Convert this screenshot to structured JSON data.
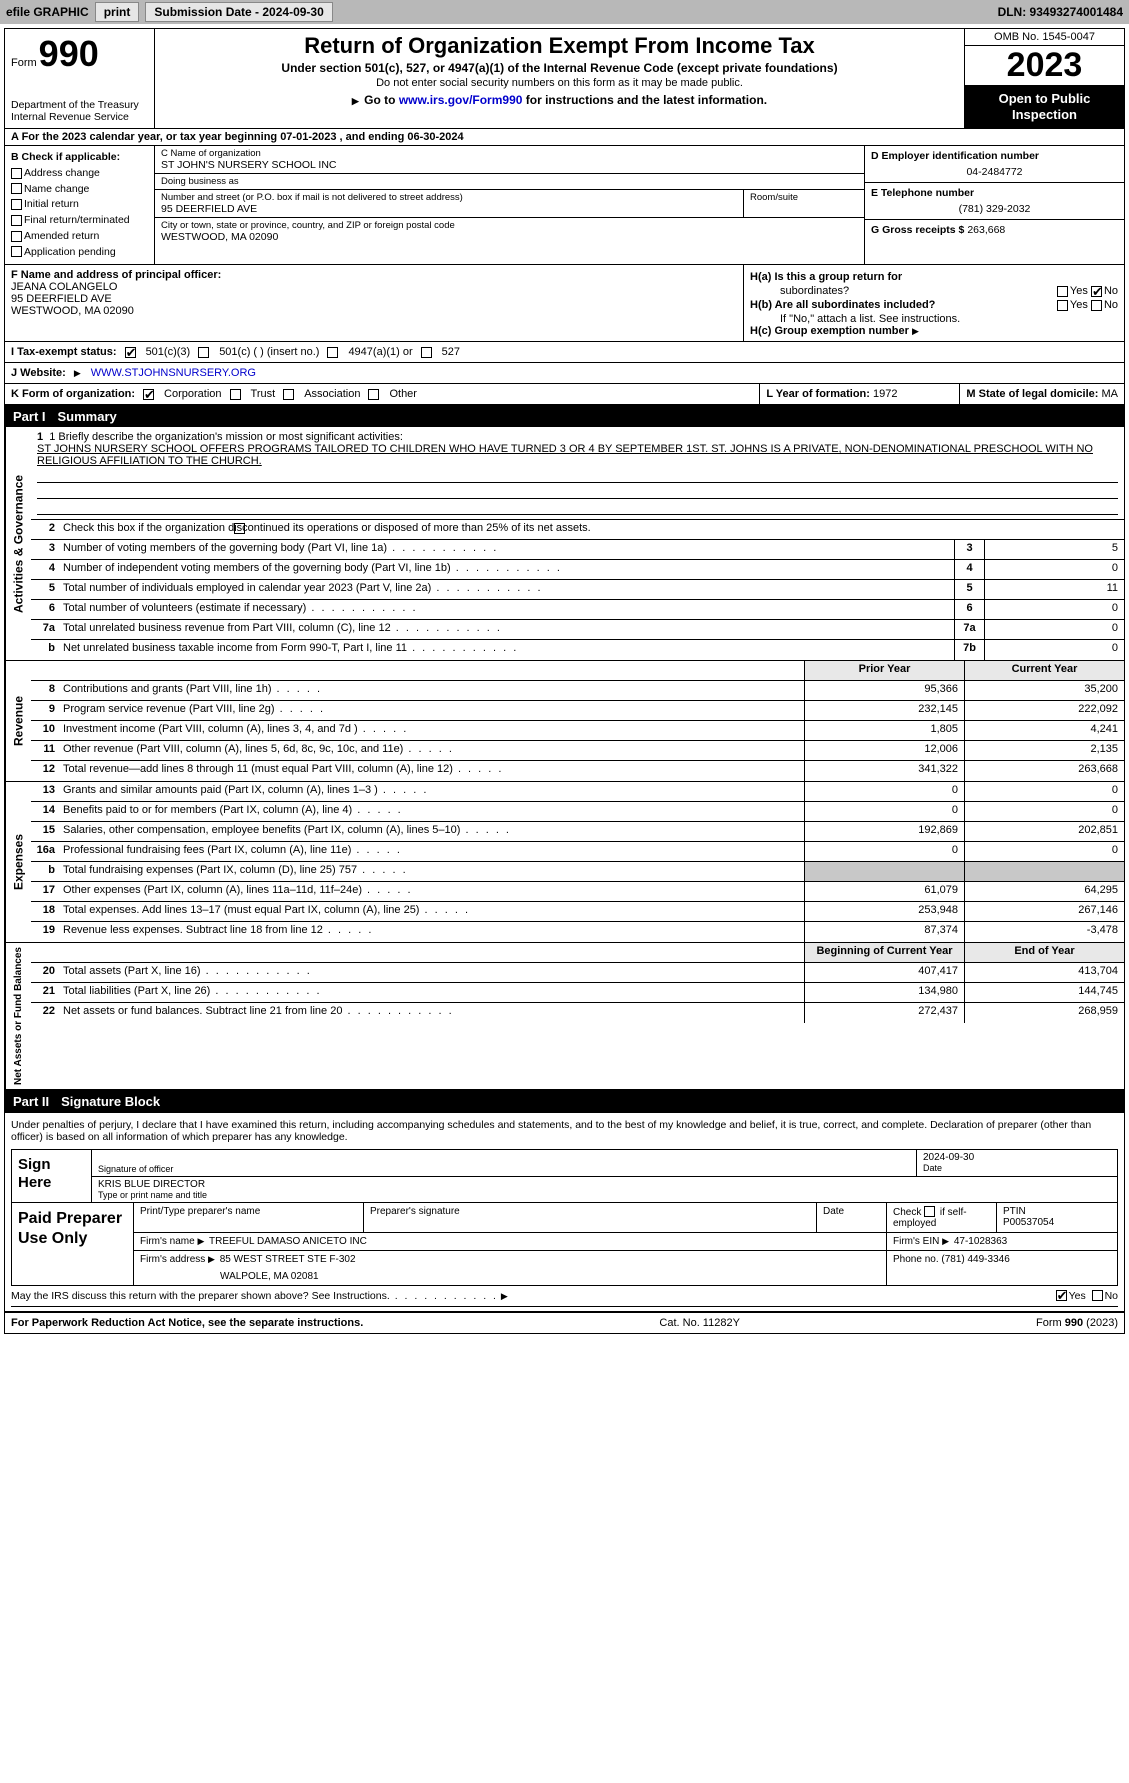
{
  "topbar": {
    "efile": "efile GRAPHIC",
    "print": "print",
    "submission": "Submission Date - 2024-09-30",
    "dln": "DLN: 93493274001484"
  },
  "header": {
    "form_word": "Form",
    "form_num": "990",
    "dept": "Department of the Treasury",
    "irs": "Internal Revenue Service",
    "title": "Return of Organization Exempt From Income Tax",
    "sub": "Under section 501(c), 527, or 4947(a)(1) of the Internal Revenue Code (except private foundations)",
    "note": "Do not enter social security numbers on this form as it may be made public.",
    "goto_pre": "Go to ",
    "goto_link": "www.irs.gov/Form990",
    "goto_post": " for instructions and the latest information.",
    "omb": "OMB No. 1545-0047",
    "year": "2023",
    "open": "Open to Public Inspection"
  },
  "row_a": "A For the 2023 calendar year, or tax year beginning 07-01-2023   , and ending 06-30-2024",
  "col_b": {
    "label": "B Check if applicable:",
    "items": [
      "Address change",
      "Name change",
      "Initial return",
      "Final return/terminated",
      "Amended return",
      "Application pending"
    ]
  },
  "col_c": {
    "name_lab": "C Name of organization",
    "name": "ST JOHN'S NURSERY SCHOOL INC",
    "dba_lab": "Doing business as",
    "dba": "",
    "addr_lab": "Number and street (or P.O. box if mail is not delivered to street address)",
    "addr": "95 DEERFIELD AVE",
    "room_lab": "Room/suite",
    "room": "",
    "city_lab": "City or town, state or province, country, and ZIP or foreign postal code",
    "city": "WESTWOOD, MA  02090"
  },
  "col_d": {
    "ein_lab": "D Employer identification number",
    "ein": "04-2484772",
    "tel_lab": "E Telephone number",
    "tel": "(781) 329-2032",
    "gross_lab": "G Gross receipts $",
    "gross": "263,668"
  },
  "row_f": {
    "lab": "F Name and address of principal officer:",
    "name": "JEANA COLANGELO",
    "addr1": "95 DEERFIELD AVE",
    "addr2": "WESTWOOD, MA  02090"
  },
  "row_h": {
    "ha_lab": "H(a)  Is this a group return for",
    "ha_sub": "subordinates?",
    "hb_lab": "H(b)  Are all subordinates included?",
    "hb_note": "If \"No,\" attach a list. See instructions.",
    "hc_lab": "H(c)  Group exemption number ",
    "yes": "Yes",
    "no": "No"
  },
  "row_i": {
    "lab": "I   Tax-exempt status:",
    "o1": "501(c)(3)",
    "o2": "501(c) (  ) (insert no.)",
    "o3": "4947(a)(1) or",
    "o4": "527"
  },
  "row_j": {
    "lab": "J   Website: ",
    "val": " WWW.STJOHNSNURSERY.ORG"
  },
  "row_k": {
    "lab": "K Form of organization:",
    "o1": "Corporation",
    "o2": "Trust",
    "o3": "Association",
    "o4": "Other"
  },
  "row_l": {
    "lab": "L Year of formation: ",
    "val": "1972"
  },
  "row_m": {
    "lab": "M State of legal domicile: ",
    "val": "MA"
  },
  "part1": {
    "num": "Part I",
    "title": "Summary"
  },
  "mission": {
    "lab": "1   Briefly describe the organization's mission or most significant activities:",
    "text": "ST JOHNS NURSERY SCHOOL OFFERS PROGRAMS TAILORED TO CHILDREN WHO HAVE TURNED 3 OR 4 BY SEPTEMBER 1ST. ST. JOHNS IS A PRIVATE, NON-DENOMINATIONAL PRESCHOOL WITH NO RELIGIOUS AFFILIATION TO THE CHURCH."
  },
  "vtabs": {
    "gov": "Activities & Governance",
    "rev": "Revenue",
    "exp": "Expenses",
    "net": "Net Assets or Fund Balances"
  },
  "gov_lines": {
    "l2": "Check this box       if the organization discontinued its operations or disposed of more than 25% of its net assets.",
    "l3": {
      "t": "Number of voting members of the governing body (Part VI, line 1a)",
      "b": "3",
      "v": "5"
    },
    "l4": {
      "t": "Number of independent voting members of the governing body (Part VI, line 1b)",
      "b": "4",
      "v": "0"
    },
    "l5": {
      "t": "Total number of individuals employed in calendar year 2023 (Part V, line 2a)",
      "b": "5",
      "v": "11"
    },
    "l6": {
      "t": "Total number of volunteers (estimate if necessary)",
      "b": "6",
      "v": "0"
    },
    "l7a": {
      "t": "Total unrelated business revenue from Part VIII, column (C), line 12",
      "b": "7a",
      "v": "0"
    },
    "l7b": {
      "t": "Net unrelated business taxable income from Form 990-T, Part I, line 11",
      "b": "7b",
      "v": "0"
    }
  },
  "cols": {
    "py": "Prior Year",
    "cy": "Current Year",
    "boy": "Beginning of Current Year",
    "eoy": "End of Year"
  },
  "rev_lines": [
    {
      "n": "8",
      "t": "Contributions and grants (Part VIII, line 1h)",
      "py": "95,366",
      "cy": "35,200"
    },
    {
      "n": "9",
      "t": "Program service revenue (Part VIII, line 2g)",
      "py": "232,145",
      "cy": "222,092"
    },
    {
      "n": "10",
      "t": "Investment income (Part VIII, column (A), lines 3, 4, and 7d )",
      "py": "1,805",
      "cy": "4,241"
    },
    {
      "n": "11",
      "t": "Other revenue (Part VIII, column (A), lines 5, 6d, 8c, 9c, 10c, and 11e)",
      "py": "12,006",
      "cy": "2,135"
    },
    {
      "n": "12",
      "t": "Total revenue—add lines 8 through 11 (must equal Part VIII, column (A), line 12)",
      "py": "341,322",
      "cy": "263,668"
    }
  ],
  "exp_lines": [
    {
      "n": "13",
      "t": "Grants and similar amounts paid (Part IX, column (A), lines 1–3 )",
      "py": "0",
      "cy": "0"
    },
    {
      "n": "14",
      "t": "Benefits paid to or for members (Part IX, column (A), line 4)",
      "py": "0",
      "cy": "0"
    },
    {
      "n": "15",
      "t": "Salaries, other compensation, employee benefits (Part IX, column (A), lines 5–10)",
      "py": "192,869",
      "cy": "202,851"
    },
    {
      "n": "16a",
      "t": "Professional fundraising fees (Part IX, column (A), line 11e)",
      "py": "0",
      "cy": "0"
    },
    {
      "n": "b",
      "t": "Total fundraising expenses (Part IX, column (D), line 25) 757",
      "py": "",
      "cy": "",
      "shade": true
    },
    {
      "n": "17",
      "t": "Other expenses (Part IX, column (A), lines 11a–11d, 11f–24e)",
      "py": "61,079",
      "cy": "64,295"
    },
    {
      "n": "18",
      "t": "Total expenses. Add lines 13–17 (must equal Part IX, column (A), line 25)",
      "py": "253,948",
      "cy": "267,146"
    },
    {
      "n": "19",
      "t": "Revenue less expenses. Subtract line 18 from line 12",
      "py": "87,374",
      "cy": "-3,478"
    }
  ],
  "net_lines": [
    {
      "n": "20",
      "t": "Total assets (Part X, line 16)",
      "py": "407,417",
      "cy": "413,704"
    },
    {
      "n": "21",
      "t": "Total liabilities (Part X, line 26)",
      "py": "134,980",
      "cy": "144,745"
    },
    {
      "n": "22",
      "t": "Net assets or fund balances. Subtract line 21 from line 20",
      "py": "272,437",
      "cy": "268,959"
    }
  ],
  "part2": {
    "num": "Part II",
    "title": "Signature Block"
  },
  "sig": {
    "decl": "Under penalties of perjury, I declare that I have examined this return, including accompanying schedules and statements, and to the best of my knowledge and belief, it is true, correct, and complete. Declaration of preparer (other than officer) is based on all information of which preparer has any knowledge.",
    "sign_here": "Sign Here",
    "sig_officer_lab": "Signature of officer",
    "officer": "KRIS BLUE  DIRECTOR",
    "type_lab": "Type or print name and title",
    "date_lab": "Date",
    "date": "2024-09-30"
  },
  "paid": {
    "lab": "Paid Preparer Use Only",
    "name_lab": "Print/Type preparer's name",
    "name": "",
    "sig_lab": "Preparer's signature",
    "date_lab": "Date",
    "self_lab": "Check        if self-employed",
    "ptin_lab": "PTIN",
    "ptin": "P00537054",
    "firm_name_lab": "Firm's name   ",
    "firm_name": "TREEFUL DAMASO ANICETO INC",
    "firm_ein_lab": "Firm's EIN  ",
    "firm_ein": "47-1028363",
    "firm_addr_lab": "Firm's address ",
    "firm_addr": "85 WEST STREET STE F-302",
    "firm_addr2": "WALPOLE, MA  02081",
    "phone_lab": "Phone no. ",
    "phone": "(781) 449-3346"
  },
  "discuss": {
    "t": "May the IRS discuss this return with the preparer shown above? See Instructions.",
    "yes": "Yes",
    "no": "No"
  },
  "footer": {
    "pra": "For Paperwork Reduction Act Notice, see the separate instructions.",
    "cat": "Cat. No. 11282Y",
    "form": "Form 990 (2023)"
  }
}
